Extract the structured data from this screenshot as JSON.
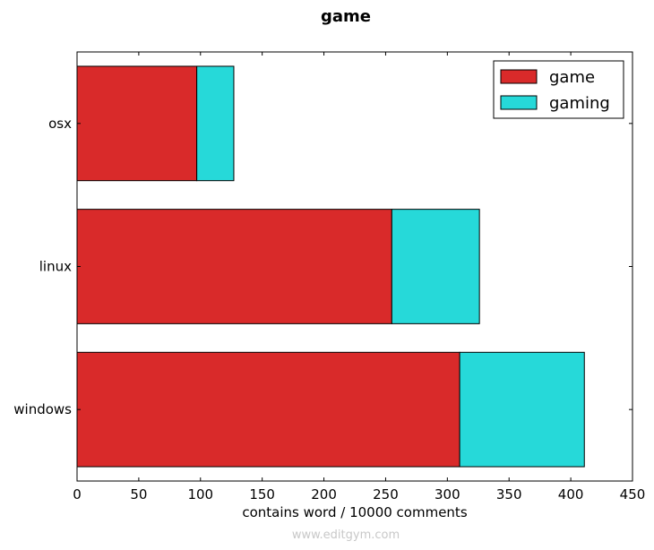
{
  "chart_data": {
    "type": "bar",
    "orientation": "horizontal",
    "stacked": true,
    "title": "game",
    "xlabel": "contains word / 10000 comments",
    "ylabel": "",
    "categories": [
      "windows",
      "linux",
      "osx"
    ],
    "series": [
      {
        "name": "game",
        "values": [
          310,
          255,
          97
        ],
        "color": "#d92a2a"
      },
      {
        "name": "gaming",
        "values": [
          101,
          71,
          30
        ],
        "color": "#26d9d9"
      }
    ],
    "xlim": [
      0,
      450
    ],
    "xticks": [
      "0",
      "50",
      "100",
      "150",
      "200",
      "250",
      "300",
      "350",
      "400",
      "450"
    ],
    "grid": false,
    "legend_position": "top-right"
  },
  "footer": "www.editgym.com"
}
